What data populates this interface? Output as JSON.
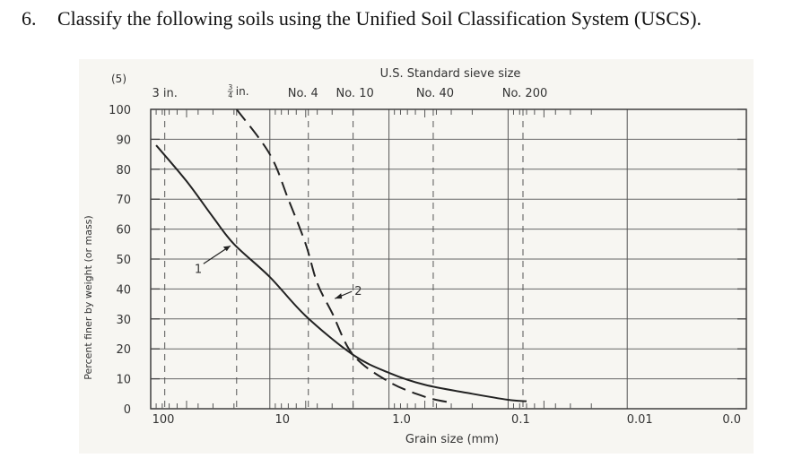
{
  "question": {
    "number": "6.",
    "text": "Classify the following soils using the Unified Soil Classification System (USCS)."
  },
  "chart_data": {
    "type": "line",
    "figure_tag": "(5)",
    "title": "U.S. Standard sieve size",
    "xlabel": "Grain size (mm)",
    "ylabel": "Percent finer by weight (or mass)",
    "x_scale": "log",
    "x_reversed": true,
    "xlim": [
      100,
      0.001
    ],
    "ylim": [
      0,
      100
    ],
    "x_tick_labels": [
      "100",
      "10",
      "1.0",
      "0.1",
      "0.01",
      "0.0"
    ],
    "y_tick_labels": [
      "0",
      "10",
      "20",
      "30",
      "40",
      "50",
      "60",
      "70",
      "80",
      "90",
      "100"
    ],
    "sieves": [
      {
        "label": "3 in.",
        "size_mm": 76.2
      },
      {
        "label": "3/4 in.",
        "size_mm": 19.0
      },
      {
        "label": "No. 4",
        "size_mm": 4.75
      },
      {
        "label": "No. 10",
        "size_mm": 2.0
      },
      {
        "label": "No. 40",
        "size_mm": 0.425
      },
      {
        "label": "No. 200",
        "size_mm": 0.075
      }
    ],
    "grid": true,
    "series": [
      {
        "name": "1",
        "style": "solid",
        "points": [
          {
            "x": 90,
            "y": 88
          },
          {
            "x": 50,
            "y": 76
          },
          {
            "x": 30,
            "y": 64
          },
          {
            "x": 20,
            "y": 55
          },
          {
            "x": 10,
            "y": 44
          },
          {
            "x": 5,
            "y": 31
          },
          {
            "x": 2,
            "y": 18
          },
          {
            "x": 1,
            "y": 12
          },
          {
            "x": 0.5,
            "y": 8
          },
          {
            "x": 0.2,
            "y": 5
          },
          {
            "x": 0.1,
            "y": 3
          },
          {
            "x": 0.07,
            "y": 2.5
          }
        ]
      },
      {
        "name": "2",
        "style": "dashed",
        "points": [
          {
            "x": 19,
            "y": 100
          },
          {
            "x": 10,
            "y": 85
          },
          {
            "x": 7,
            "y": 70
          },
          {
            "x": 5,
            "y": 55
          },
          {
            "x": 4,
            "y": 42
          },
          {
            "x": 3,
            "y": 32
          },
          {
            "x": 2,
            "y": 18
          },
          {
            "x": 1,
            "y": 9
          },
          {
            "x": 0.5,
            "y": 4
          },
          {
            "x": 0.3,
            "y": 2
          }
        ]
      }
    ]
  }
}
